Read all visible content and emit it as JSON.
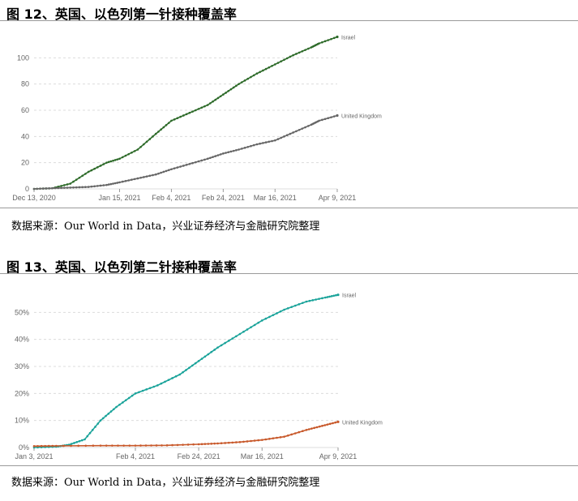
{
  "figure1": {
    "title": "图 12、英国、以色列第一针接种覆盖率",
    "source": "数据来源：Our World in Data，兴业证券经济与金融研究院整理"
  },
  "figure2": {
    "title": "图 13、英国、以色列第二针接种覆盖率",
    "source": "数据来源：Our World in Data，兴业证券经济与金融研究院整理"
  },
  "chart_data": [
    {
      "type": "line",
      "x_tick_labels": [
        "Dec 13, 2020",
        "Jan 15, 2021",
        "Feb 4, 2021",
        "Feb 24, 2021",
        "Mar 16, 2021",
        "Apr 9, 2021"
      ],
      "x_tick_dates": [
        "2020-12-13",
        "2021-01-15",
        "2021-02-04",
        "2021-02-24",
        "2021-03-16",
        "2021-04-09"
      ],
      "y_ticks": [
        0,
        20,
        40,
        60,
        80,
        100
      ],
      "y_tick_labels": [
        "0",
        "20",
        "40",
        "60",
        "80",
        "100"
      ],
      "ylim": [
        0,
        120
      ],
      "x_range": [
        "2020-12-13",
        "2021-04-09"
      ],
      "grid": "horizontal dashed",
      "series": [
        {
          "name": "Israel",
          "color": "#2e6b2a",
          "points": [
            [
              "2020-12-13",
              0
            ],
            [
              "2020-12-20",
              0.5
            ],
            [
              "2020-12-27",
              4
            ],
            [
              "2021-01-03",
              13
            ],
            [
              "2021-01-10",
              20
            ],
            [
              "2021-01-15",
              23
            ],
            [
              "2021-01-22",
              30
            ],
            [
              "2021-01-29",
              42
            ],
            [
              "2021-02-04",
              52
            ],
            [
              "2021-02-11",
              58
            ],
            [
              "2021-02-18",
              64
            ],
            [
              "2021-02-24",
              72
            ],
            [
              "2021-03-02",
              80
            ],
            [
              "2021-03-09",
              88
            ],
            [
              "2021-03-16",
              95
            ],
            [
              "2021-03-23",
              102
            ],
            [
              "2021-03-30",
              108
            ],
            [
              "2021-04-02",
              111
            ],
            [
              "2021-04-09",
              116
            ]
          ]
        },
        {
          "name": "United Kingdom",
          "color": "#666666",
          "points": [
            [
              "2020-12-13",
              0
            ],
            [
              "2020-12-20",
              0.5
            ],
            [
              "2020-12-27",
              1
            ],
            [
              "2021-01-03",
              1.5
            ],
            [
              "2021-01-10",
              3
            ],
            [
              "2021-01-15",
              5
            ],
            [
              "2021-01-22",
              8
            ],
            [
              "2021-01-29",
              11
            ],
            [
              "2021-02-04",
              15
            ],
            [
              "2021-02-11",
              19
            ],
            [
              "2021-02-18",
              23
            ],
            [
              "2021-02-24",
              27
            ],
            [
              "2021-03-02",
              30
            ],
            [
              "2021-03-09",
              34
            ],
            [
              "2021-03-16",
              37
            ],
            [
              "2021-03-23",
              43
            ],
            [
              "2021-03-30",
              49
            ],
            [
              "2021-04-02",
              52
            ],
            [
              "2021-04-09",
              56
            ]
          ]
        }
      ]
    },
    {
      "type": "line",
      "x_tick_labels": [
        "Jan 3, 2021",
        "Feb 4, 2021",
        "Feb 24, 2021",
        "Mar 16, 2021",
        "Apr 9, 2021"
      ],
      "x_tick_dates": [
        "2021-01-03",
        "2021-02-04",
        "2021-02-24",
        "2021-03-16",
        "2021-04-09"
      ],
      "y_ticks": [
        0,
        10,
        20,
        30,
        40,
        50
      ],
      "y_tick_labels": [
        "0%",
        "10%",
        "20%",
        "30%",
        "40%",
        "50%"
      ],
      "ylim": [
        0,
        57
      ],
      "x_range": [
        "2021-01-03",
        "2021-04-09"
      ],
      "grid": "horizontal dashed",
      "series": [
        {
          "name": "Israel",
          "color": "#1aa39a",
          "points": [
            [
              "2021-01-03",
              0
            ],
            [
              "2021-01-10",
              0.3
            ],
            [
              "2021-01-14",
              1
            ],
            [
              "2021-01-19",
              3
            ],
            [
              "2021-01-24",
              10
            ],
            [
              "2021-01-29",
              15
            ],
            [
              "2021-02-04",
              20
            ],
            [
              "2021-02-11",
              23
            ],
            [
              "2021-02-18",
              27
            ],
            [
              "2021-02-24",
              32
            ],
            [
              "2021-03-02",
              37
            ],
            [
              "2021-03-09",
              42
            ],
            [
              "2021-03-16",
              47
            ],
            [
              "2021-03-23",
              51
            ],
            [
              "2021-03-30",
              54
            ],
            [
              "2021-04-05",
              55.5
            ],
            [
              "2021-04-09",
              56.5
            ]
          ]
        },
        {
          "name": "United Kingdom",
          "color": "#c8592b",
          "points": [
            [
              "2021-01-03",
              0.5
            ],
            [
              "2021-01-10",
              0.6
            ],
            [
              "2021-01-24",
              0.7
            ],
            [
              "2021-02-04",
              0.7
            ],
            [
              "2021-02-14",
              0.8
            ],
            [
              "2021-02-24",
              1.2
            ],
            [
              "2021-03-02",
              1.5
            ],
            [
              "2021-03-09",
              2
            ],
            [
              "2021-03-16",
              2.8
            ],
            [
              "2021-03-23",
              4
            ],
            [
              "2021-03-30",
              6.5
            ],
            [
              "2021-04-04",
              8
            ],
            [
              "2021-04-09",
              9.5
            ]
          ]
        }
      ]
    }
  ]
}
